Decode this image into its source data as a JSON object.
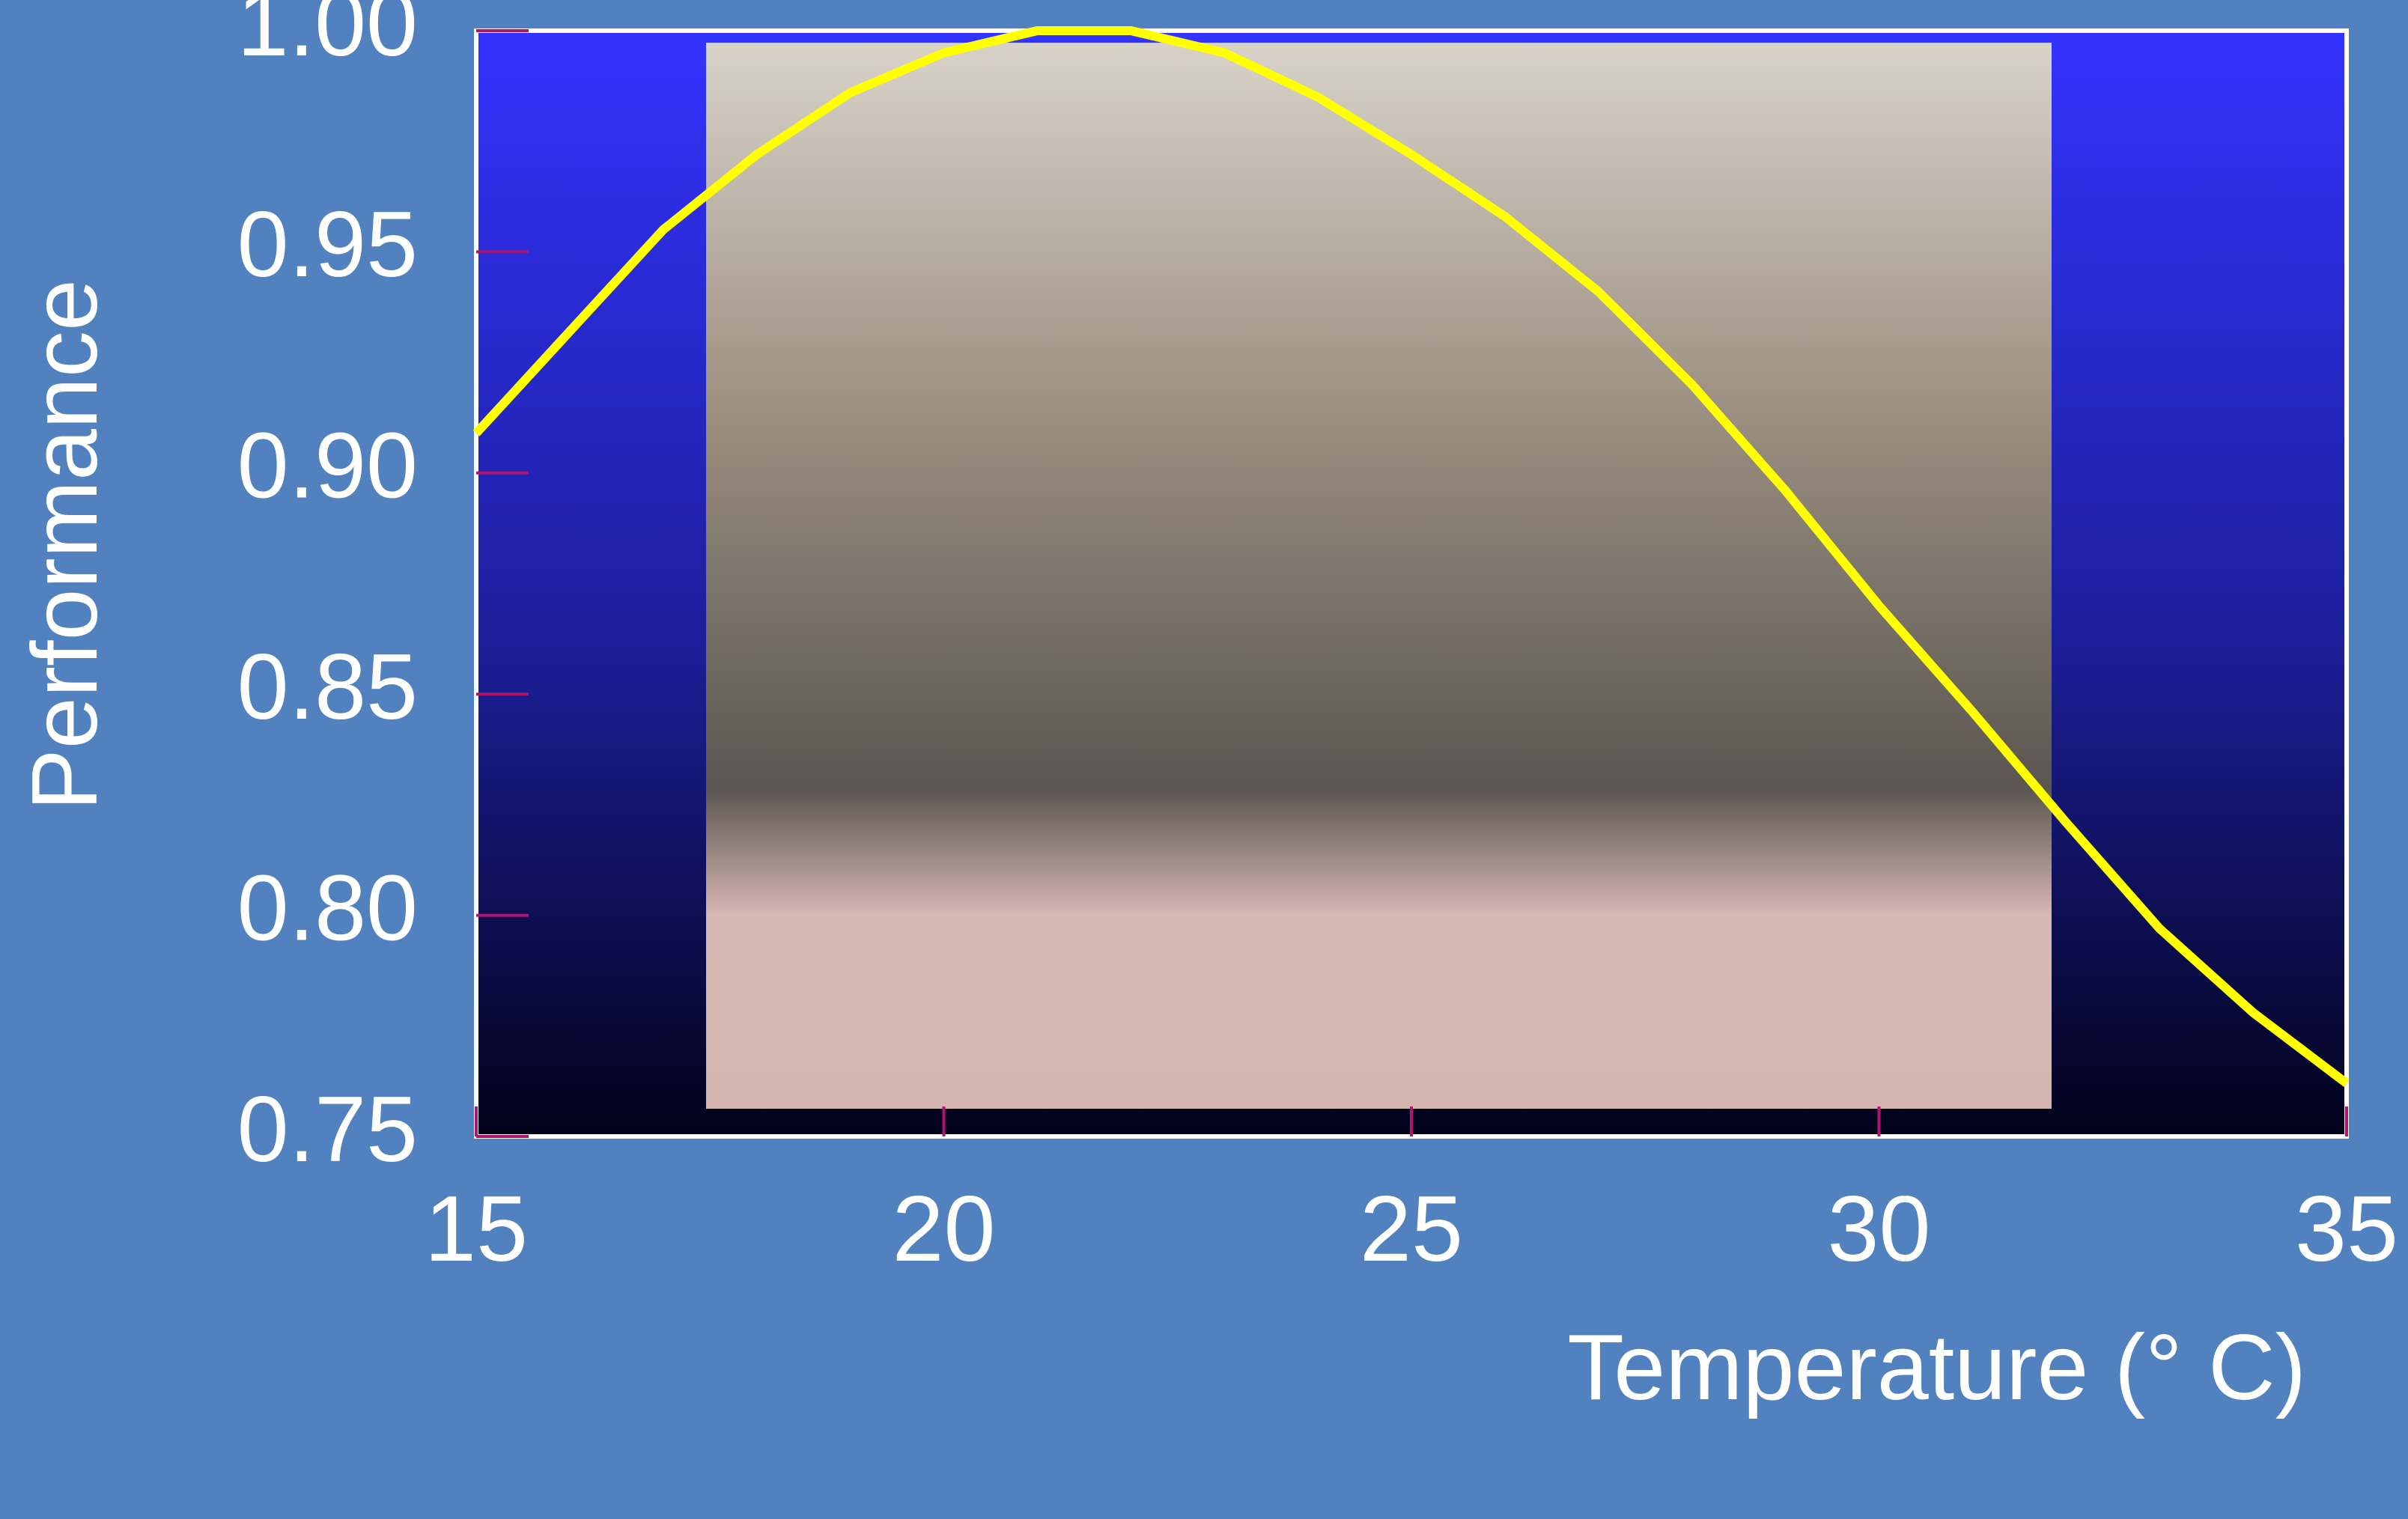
{
  "chart_data": {
    "type": "line",
    "x_label": "Temperature (° C)",
    "y_label": "Performance",
    "x": [
      15,
      16,
      17,
      18,
      19,
      20,
      21,
      22,
      23,
      24,
      25,
      26,
      27,
      28,
      29,
      30,
      31,
      32,
      33,
      34,
      35
    ],
    "series": [
      {
        "color": "#ffff00",
        "values": [
          0.909,
          0.932,
          0.955,
          0.972,
          0.986,
          0.995,
          1.0,
          1.0,
          0.995,
          0.985,
          0.972,
          0.958,
          0.941,
          0.92,
          0.896,
          0.87,
          0.846,
          0.821,
          0.797,
          0.778,
          0.762
        ]
      }
    ],
    "xlim": [
      15,
      35
    ],
    "xticks": [
      15,
      20,
      25,
      30,
      35
    ],
    "ylim": [
      0.75,
      1.0
    ],
    "yticks": [
      {
        "value": 0.75,
        "label": "0.75"
      },
      {
        "value": 0.8,
        "label": "0.80"
      },
      0.85,
      {
        "value": 0.9,
        "label": "0.90"
      },
      0.95,
      {
        "value": 1.0,
        "label": "1.00"
      }
    ],
    "grid": false
  }
}
